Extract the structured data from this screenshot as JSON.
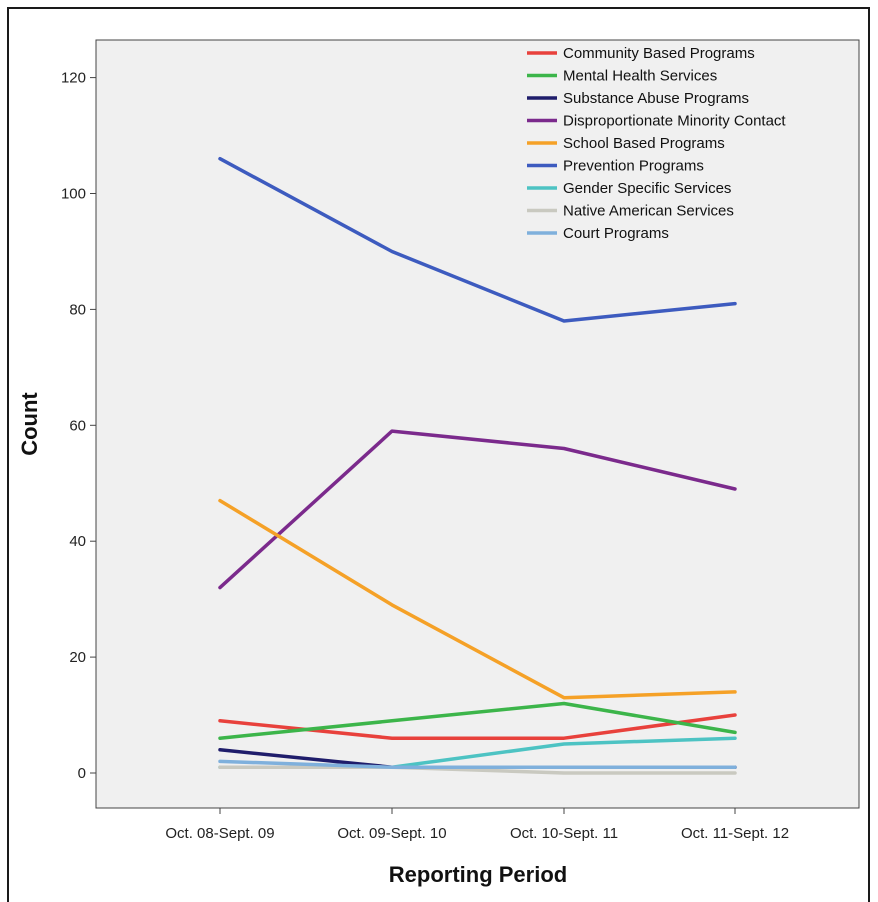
{
  "chart_data": {
    "type": "line",
    "xlabel": "Reporting Period",
    "ylabel": "Count",
    "categories": [
      "Oct. 08-Sept. 09",
      "Oct. 09-Sept. 10",
      "Oct. 10-Sept. 11",
      "Oct. 11-Sept. 12"
    ],
    "ylim": [
      -6,
      127
    ],
    "yticks": [
      0,
      20,
      40,
      60,
      80,
      100,
      120
    ],
    "grid": false,
    "legend_position": "top-right",
    "series": [
      {
        "name": "Community Based Programs",
        "color": "#e8413c",
        "values": [
          9,
          6,
          6,
          10
        ]
      },
      {
        "name": "Mental Health Services",
        "color": "#3cb54a",
        "values": [
          6,
          9,
          12,
          7
        ]
      },
      {
        "name": "Substance Abuse Programs",
        "color": "#1f1d6b",
        "values": [
          4,
          1,
          1,
          1
        ]
      },
      {
        "name": "Disproportionate Minority Contact",
        "color": "#7b2a8c",
        "values": [
          32,
          59,
          56,
          49
        ]
      },
      {
        "name": "School Based Programs",
        "color": "#f5a127",
        "values": [
          47,
          29,
          13,
          14
        ]
      },
      {
        "name": "Prevention Programs",
        "color": "#3d5bbf",
        "values": [
          106,
          90,
          78,
          81
        ]
      },
      {
        "name": "Gender Specific Services",
        "color": "#4dc3c3",
        "values": [
          1,
          1,
          5,
          6
        ]
      },
      {
        "name": "Native American Services",
        "color": "#c9c9c0",
        "values": [
          1,
          1,
          0,
          0
        ]
      },
      {
        "name": "Court Programs",
        "color": "#7fb0dc",
        "values": [
          2,
          1,
          1,
          1
        ]
      }
    ]
  }
}
